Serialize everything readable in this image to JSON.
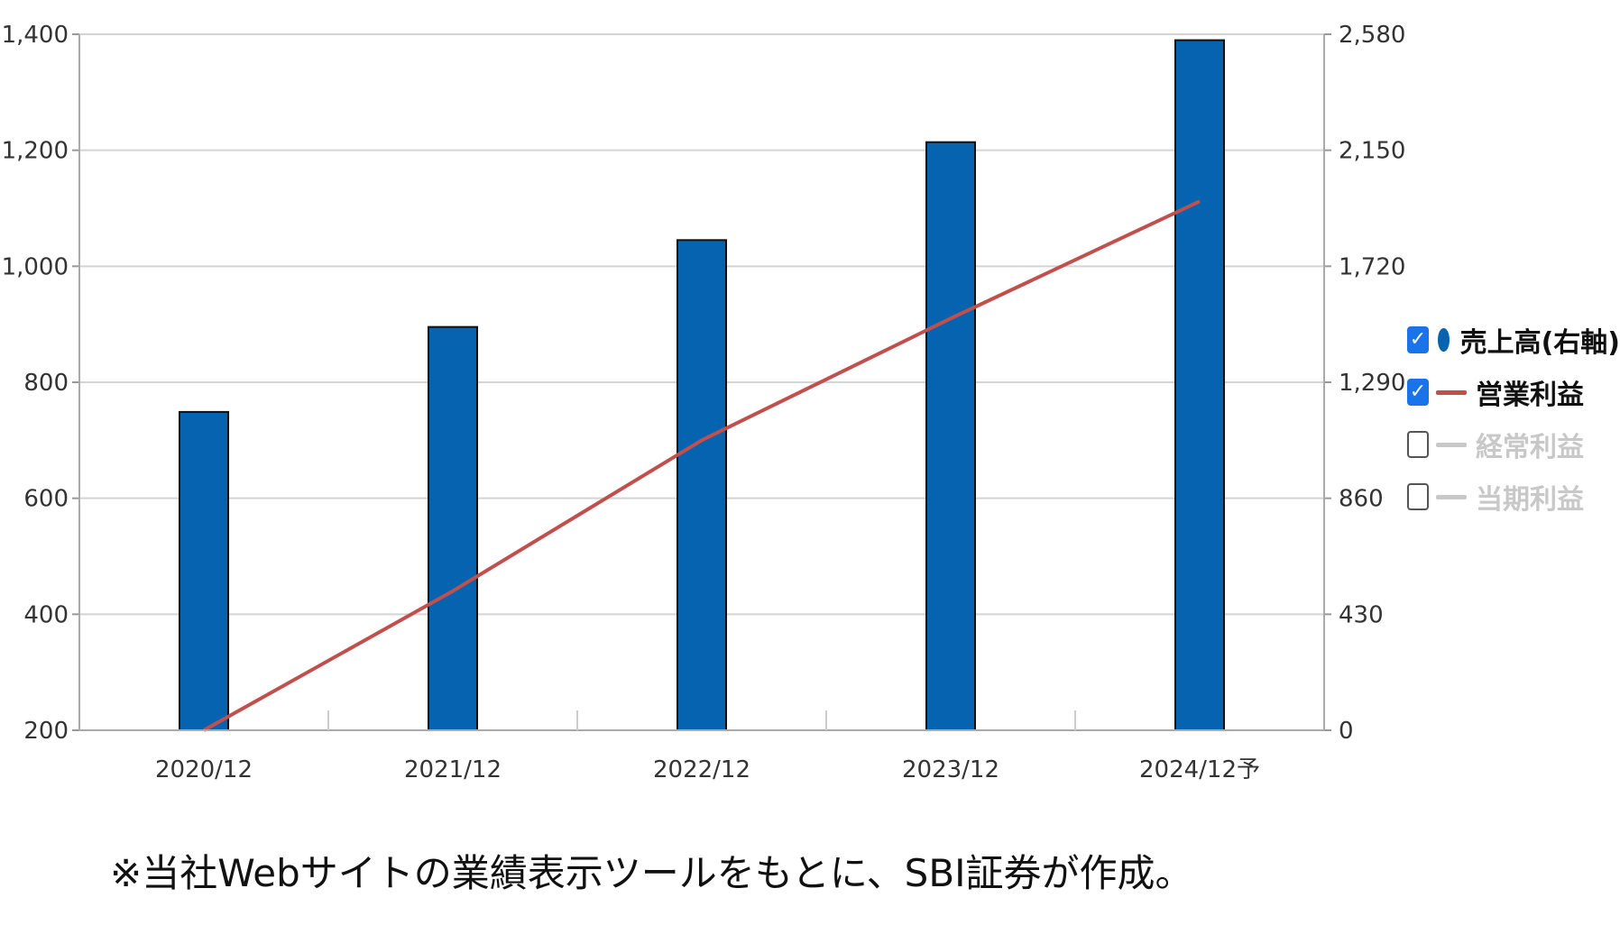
{
  "chart_data": {
    "type": "bar",
    "categories": [
      "2020/12",
      "2021/12",
      "2022/12",
      "2023/12",
      "2024/12予"
    ],
    "series": [
      {
        "name": "売上高(右軸)",
        "type": "bar",
        "axis": "right",
        "color": "#0563b0",
        "values": [
          1180,
          1495,
          1817,
          2180,
          2558
        ]
      },
      {
        "name": "営業利益",
        "type": "line",
        "axis": "left",
        "color": "#c0504d",
        "values": [
          200,
          440,
          700,
          910,
          1112
        ]
      }
    ],
    "yaxis_left": {
      "min": 200,
      "max": 1400,
      "ticks": [
        "200",
        "400",
        "600",
        "800",
        "1,000",
        "1,200",
        "1,400"
      ]
    },
    "yaxis_right": {
      "min": 0,
      "max": 2580,
      "ticks": [
        "0",
        "430",
        "860",
        "1,290",
        "1,720",
        "2,150",
        "2,580"
      ]
    },
    "grid": true,
    "legend_position": "right"
  },
  "legend": [
    {
      "label": "売上高(右軸)",
      "checked": true,
      "marker": "dot",
      "color": "#0563b0"
    },
    {
      "label": "営業利益",
      "checked": true,
      "marker": "line",
      "color": "#c0504d"
    },
    {
      "label": "経常利益",
      "checked": false,
      "marker": "line",
      "color": "#c8c8c8"
    },
    {
      "label": "当期利益",
      "checked": false,
      "marker": "line",
      "color": "#c8c8c8"
    }
  ],
  "footnote": "※当社Webサイトの業績表示ツールをもとに、SBI証券が作成。"
}
